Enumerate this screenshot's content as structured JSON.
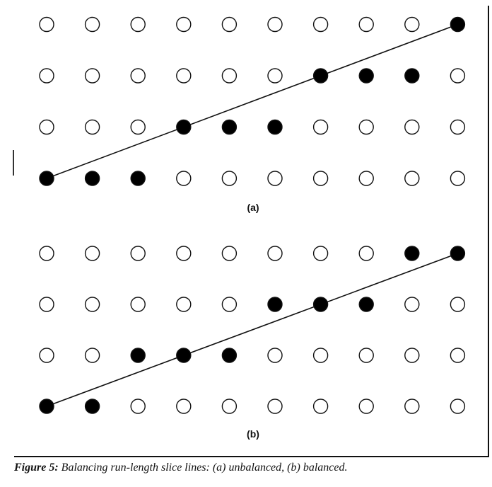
{
  "panels": [
    {
      "label": "(a)",
      "columns": 10,
      "rows": 4,
      "filled": [
        {
          "col": 0,
          "row": 0
        },
        {
          "col": 1,
          "row": 0
        },
        {
          "col": 2,
          "row": 0
        },
        {
          "col": 3,
          "row": 1
        },
        {
          "col": 4,
          "row": 1
        },
        {
          "col": 5,
          "row": 1
        },
        {
          "col": 6,
          "row": 2
        },
        {
          "col": 7,
          "row": 2
        },
        {
          "col": 8,
          "row": 2
        },
        {
          "col": 9,
          "row": 3
        }
      ],
      "line": {
        "from": {
          "col": 0,
          "row": 0
        },
        "to": {
          "col": 9,
          "row": 3
        }
      }
    },
    {
      "label": "(b)",
      "columns": 10,
      "rows": 4,
      "filled": [
        {
          "col": 0,
          "row": 0
        },
        {
          "col": 1,
          "row": 0
        },
        {
          "col": 2,
          "row": 1
        },
        {
          "col": 3,
          "row": 1
        },
        {
          "col": 4,
          "row": 1
        },
        {
          "col": 5,
          "row": 2
        },
        {
          "col": 6,
          "row": 2
        },
        {
          "col": 7,
          "row": 2
        },
        {
          "col": 8,
          "row": 3
        },
        {
          "col": 9,
          "row": 3
        }
      ],
      "line": {
        "from": {
          "col": 0,
          "row": 0
        },
        "to": {
          "col": 9,
          "row": 3
        }
      }
    }
  ],
  "caption": {
    "figure_label": "Figure 5:",
    "text": "Balancing run-length slice lines: (a) unbalanced, (b) balanced."
  }
}
